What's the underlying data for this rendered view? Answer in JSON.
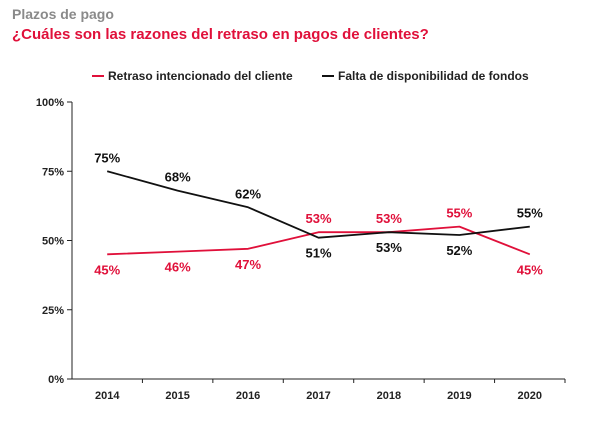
{
  "header": {
    "kicker": "Plazos de pago",
    "headline": "¿Cuáles son las razones del retraso en pagos de clientes?"
  },
  "colors": {
    "red": "#e0103a",
    "black": "#111111",
    "axis": "#222222"
  },
  "chart_data": {
    "type": "line",
    "categories": [
      "2014",
      "2015",
      "2016",
      "2017",
      "2018",
      "2019",
      "2020"
    ],
    "ylim": [
      0,
      100
    ],
    "y_ticks": [
      0,
      25,
      50,
      75,
      100
    ],
    "y_tick_labels": [
      "0%",
      "25%",
      "50%",
      "75%",
      "100%"
    ],
    "grid": false,
    "legend_position": "top",
    "series": [
      {
        "name": "Retraso intencionado del cliente",
        "color": "#e0103a",
        "values": [
          45,
          46,
          47,
          53,
          53,
          55,
          45
        ],
        "labels": [
          "45%",
          "46%",
          "47%",
          "53%",
          "53%",
          "55%",
          "45%"
        ],
        "label_position": [
          "below",
          "below",
          "below",
          "above",
          "above",
          "above",
          "below"
        ]
      },
      {
        "name": "Falta de disponibilidad de fondos",
        "color": "#111111",
        "values": [
          75,
          68,
          62,
          51,
          53,
          52,
          55
        ],
        "labels": [
          "75%",
          "68%",
          "62%",
          "51%",
          "53%",
          "52%",
          "55%"
        ],
        "label_position": [
          "above",
          "above",
          "above",
          "below",
          "below",
          "below",
          "above"
        ]
      }
    ]
  }
}
